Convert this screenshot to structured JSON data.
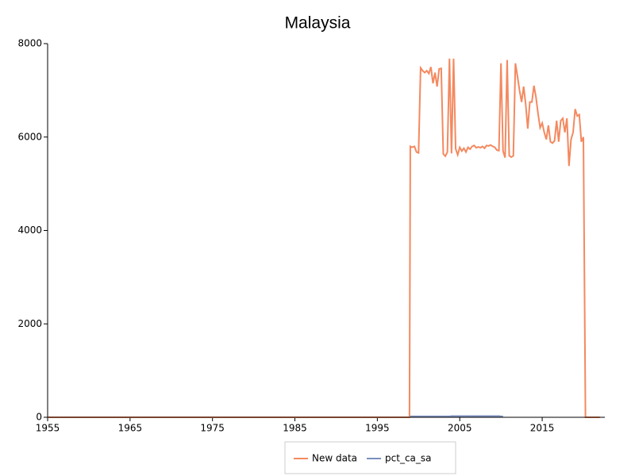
{
  "chart_data": {
    "type": "line",
    "title": "Malaysia",
    "x": [
      1955,
      1998.9,
      1999,
      1999.25,
      1999.5,
      1999.75,
      2000,
      2000.25,
      2000.5,
      2000.75,
      2001,
      2001.25,
      2001.5,
      2001.75,
      2002,
      2002.25,
      2002.5,
      2002.75,
      2003,
      2003.25,
      2003.5,
      2003.75,
      2004,
      2004.25,
      2004.5,
      2004.75,
      2005,
      2005.25,
      2005.5,
      2005.75,
      2006,
      2006.25,
      2006.5,
      2006.75,
      2007,
      2007.25,
      2007.5,
      2007.75,
      2008,
      2008.25,
      2008.5,
      2008.75,
      2009,
      2009.25,
      2009.5,
      2009.75,
      2010,
      2010.25,
      2010.5,
      2010.75,
      2011,
      2011.25,
      2011.5,
      2011.75,
      2012,
      2012.25,
      2012.5,
      2012.75,
      2013,
      2013.25,
      2013.5,
      2013.75,
      2014,
      2014.25,
      2014.5,
      2014.75,
      2015,
      2015.25,
      2015.5,
      2015.75,
      2016,
      2016.25,
      2016.5,
      2016.75,
      2017,
      2017.25,
      2017.5,
      2017.75,
      2018,
      2018.25,
      2018.5,
      2018.75,
      2019,
      2019.25,
      2019.5,
      2019.75,
      2020,
      2020.25,
      2022
    ],
    "series": [
      {
        "name": "New data",
        "color": "#f4895f",
        "values": [
          0,
          0,
          5800,
          5780,
          5800,
          5680,
          5660,
          7480,
          7420,
          7380,
          7420,
          7360,
          7500,
          7150,
          7380,
          7080,
          7460,
          7470,
          5640,
          5590,
          5680,
          7680,
          5650,
          7680,
          5750,
          5620,
          5780,
          5700,
          5760,
          5680,
          5780,
          5740,
          5800,
          5820,
          5770,
          5790,
          5770,
          5800,
          5760,
          5820,
          5810,
          5830,
          5800,
          5780,
          5720,
          5710,
          7580,
          5700,
          5560,
          7650,
          5600,
          5570,
          5600,
          7580,
          7300,
          7000,
          6750,
          7080,
          6700,
          6180,
          6750,
          6750,
          7100,
          6850,
          6500,
          6200,
          6300,
          6100,
          5950,
          6250,
          5900,
          5870,
          5920,
          6350,
          5900,
          6350,
          6400,
          6100,
          6400,
          5380,
          5950,
          6100,
          6600,
          6450,
          6480,
          5900,
          6000,
          0,
          0
        ]
      },
      {
        "name": "pct_ca_sa",
        "color": "#7b8fbf",
        "values": [
          null,
          null,
          20,
          20,
          20,
          20,
          20,
          20,
          20,
          20,
          20,
          20,
          20,
          20,
          20,
          20,
          20,
          20,
          20,
          20,
          20,
          20,
          25,
          25,
          25,
          25,
          25,
          25,
          25,
          25,
          25,
          25,
          25,
          25,
          25,
          25,
          25,
          25,
          25,
          25,
          25,
          25,
          25,
          25,
          25,
          25,
          20,
          20,
          null,
          null,
          null,
          null,
          null,
          null,
          null,
          null,
          null,
          null,
          null,
          null,
          null,
          null,
          null,
          null,
          null,
          null,
          null,
          null,
          null,
          null,
          null,
          null,
          null,
          null,
          null,
          null,
          null,
          null,
          null,
          null,
          null,
          null,
          null,
          null,
          null,
          null,
          null,
          null,
          null
        ]
      }
    ],
    "xlim": [
      1955,
      2022.6
    ],
    "xticks": [
      1955,
      1965,
      1975,
      1985,
      1995,
      2005,
      2015
    ],
    "ylim": [
      0,
      8000
    ],
    "yticks": [
      0,
      2000,
      4000,
      6000,
      8000
    ]
  }
}
